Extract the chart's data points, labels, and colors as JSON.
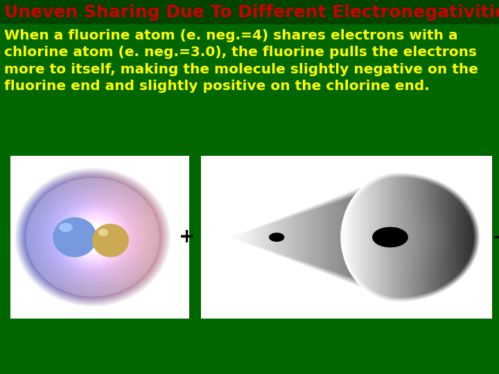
{
  "bg_color": "#006600",
  "title": "Uneven Sharing Due To Different Electronegativities",
  "title_color": "#cc0000",
  "title_fontsize": 18,
  "body_text": "When a fluorine atom (e. neg.=4) shares electrons with a\nchlorine atom (e. neg.=3.0), the fluorine pulls the electrons\nmore to itself, making the molecule slightly negative on the\nfluorine end and slightly positive on the chlorine end.",
  "body_color": "#ffff00",
  "body_fontsize": 14.5,
  "plus_label": "+",
  "minus_label": "−",
  "label_color": "#000000",
  "label_fontsize": 20
}
